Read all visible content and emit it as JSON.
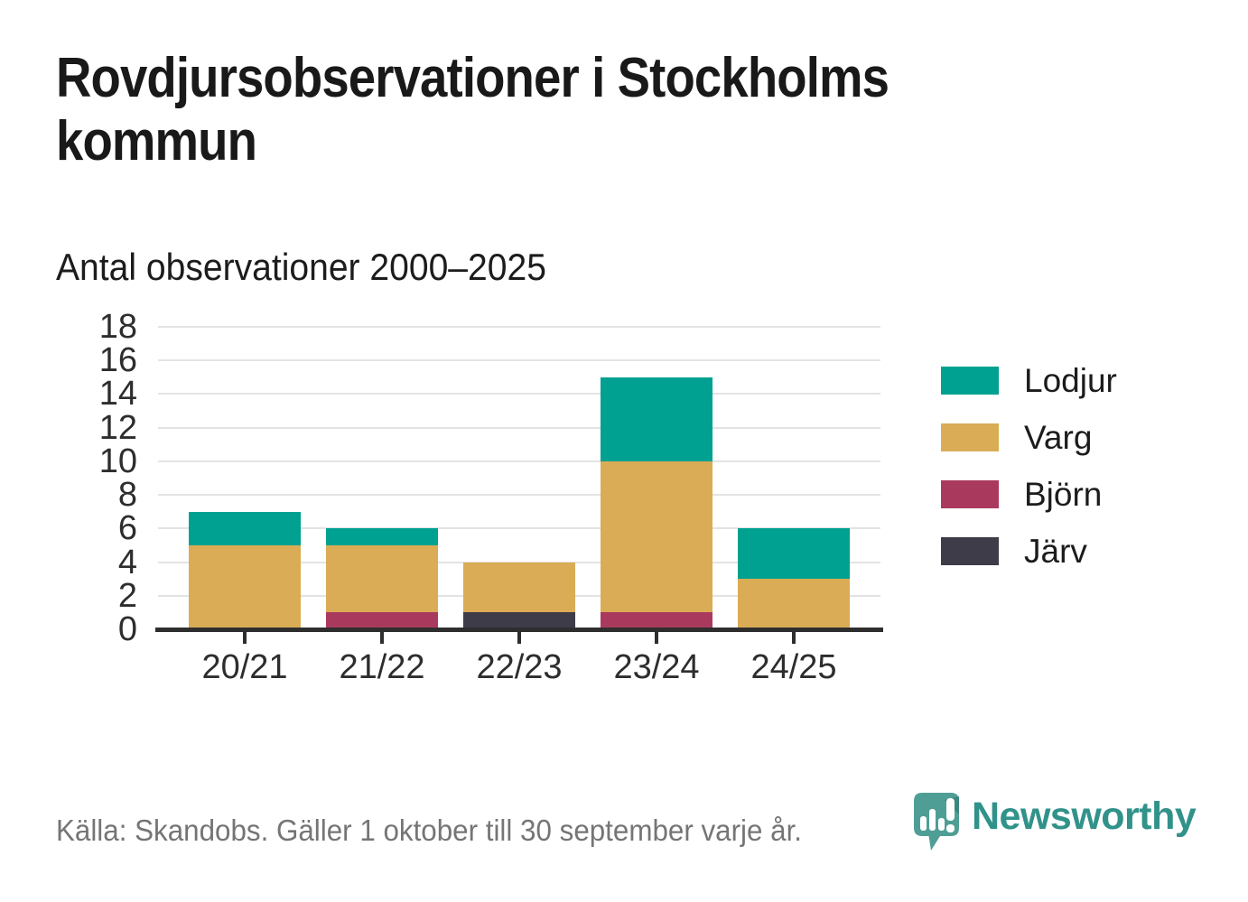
{
  "title": "Rovdjursobservationer i Stockholms kommun",
  "subtitle": "Antal observationer 2000–2025",
  "source": "Källa: Skandobs. Gäller 1 oktober till 30 september varje år.",
  "branding": {
    "name": "Newsworthy",
    "logo_icon": "speech-bubble-bar-chart-icon",
    "logo_color": "#4f9e96",
    "text_color": "#31928a"
  },
  "colors": {
    "grid": "#e3e3e3",
    "axis": "#2e2e2e",
    "tick_label": "#2d2d2d",
    "title_text": "#191919",
    "source_text": "#757575"
  },
  "chart_data": {
    "type": "bar",
    "stacked": true,
    "title": "Rovdjursobservationer i Stockholms kommun",
    "subtitle": "Antal observationer 2000–2025",
    "categories": [
      "20/21",
      "21/22",
      "22/23",
      "23/24",
      "24/25"
    ],
    "series": [
      {
        "name": "Lodjur",
        "color": "#00a190",
        "values": [
          2,
          1,
          0,
          5,
          3
        ]
      },
      {
        "name": "Varg",
        "color": "#d9ac55",
        "values": [
          5,
          4,
          3,
          9,
          3
        ]
      },
      {
        "name": "Björn",
        "color": "#aa3a5d",
        "values": [
          0,
          1,
          0,
          1,
          0
        ]
      },
      {
        "name": "Järv",
        "color": "#3f3c49",
        "values": [
          0,
          0,
          1,
          0,
          0
        ]
      }
    ],
    "totals": [
      7,
      6,
      4,
      15,
      6
    ],
    "xlabel": "",
    "ylabel": "",
    "ylim": [
      0,
      18
    ],
    "yticks": [
      0,
      2,
      4,
      6,
      8,
      10,
      12,
      14,
      16,
      18
    ],
    "grid": true,
    "legend_position": "right",
    "legend": [
      "Lodjur",
      "Varg",
      "Björn",
      "Järv"
    ]
  }
}
